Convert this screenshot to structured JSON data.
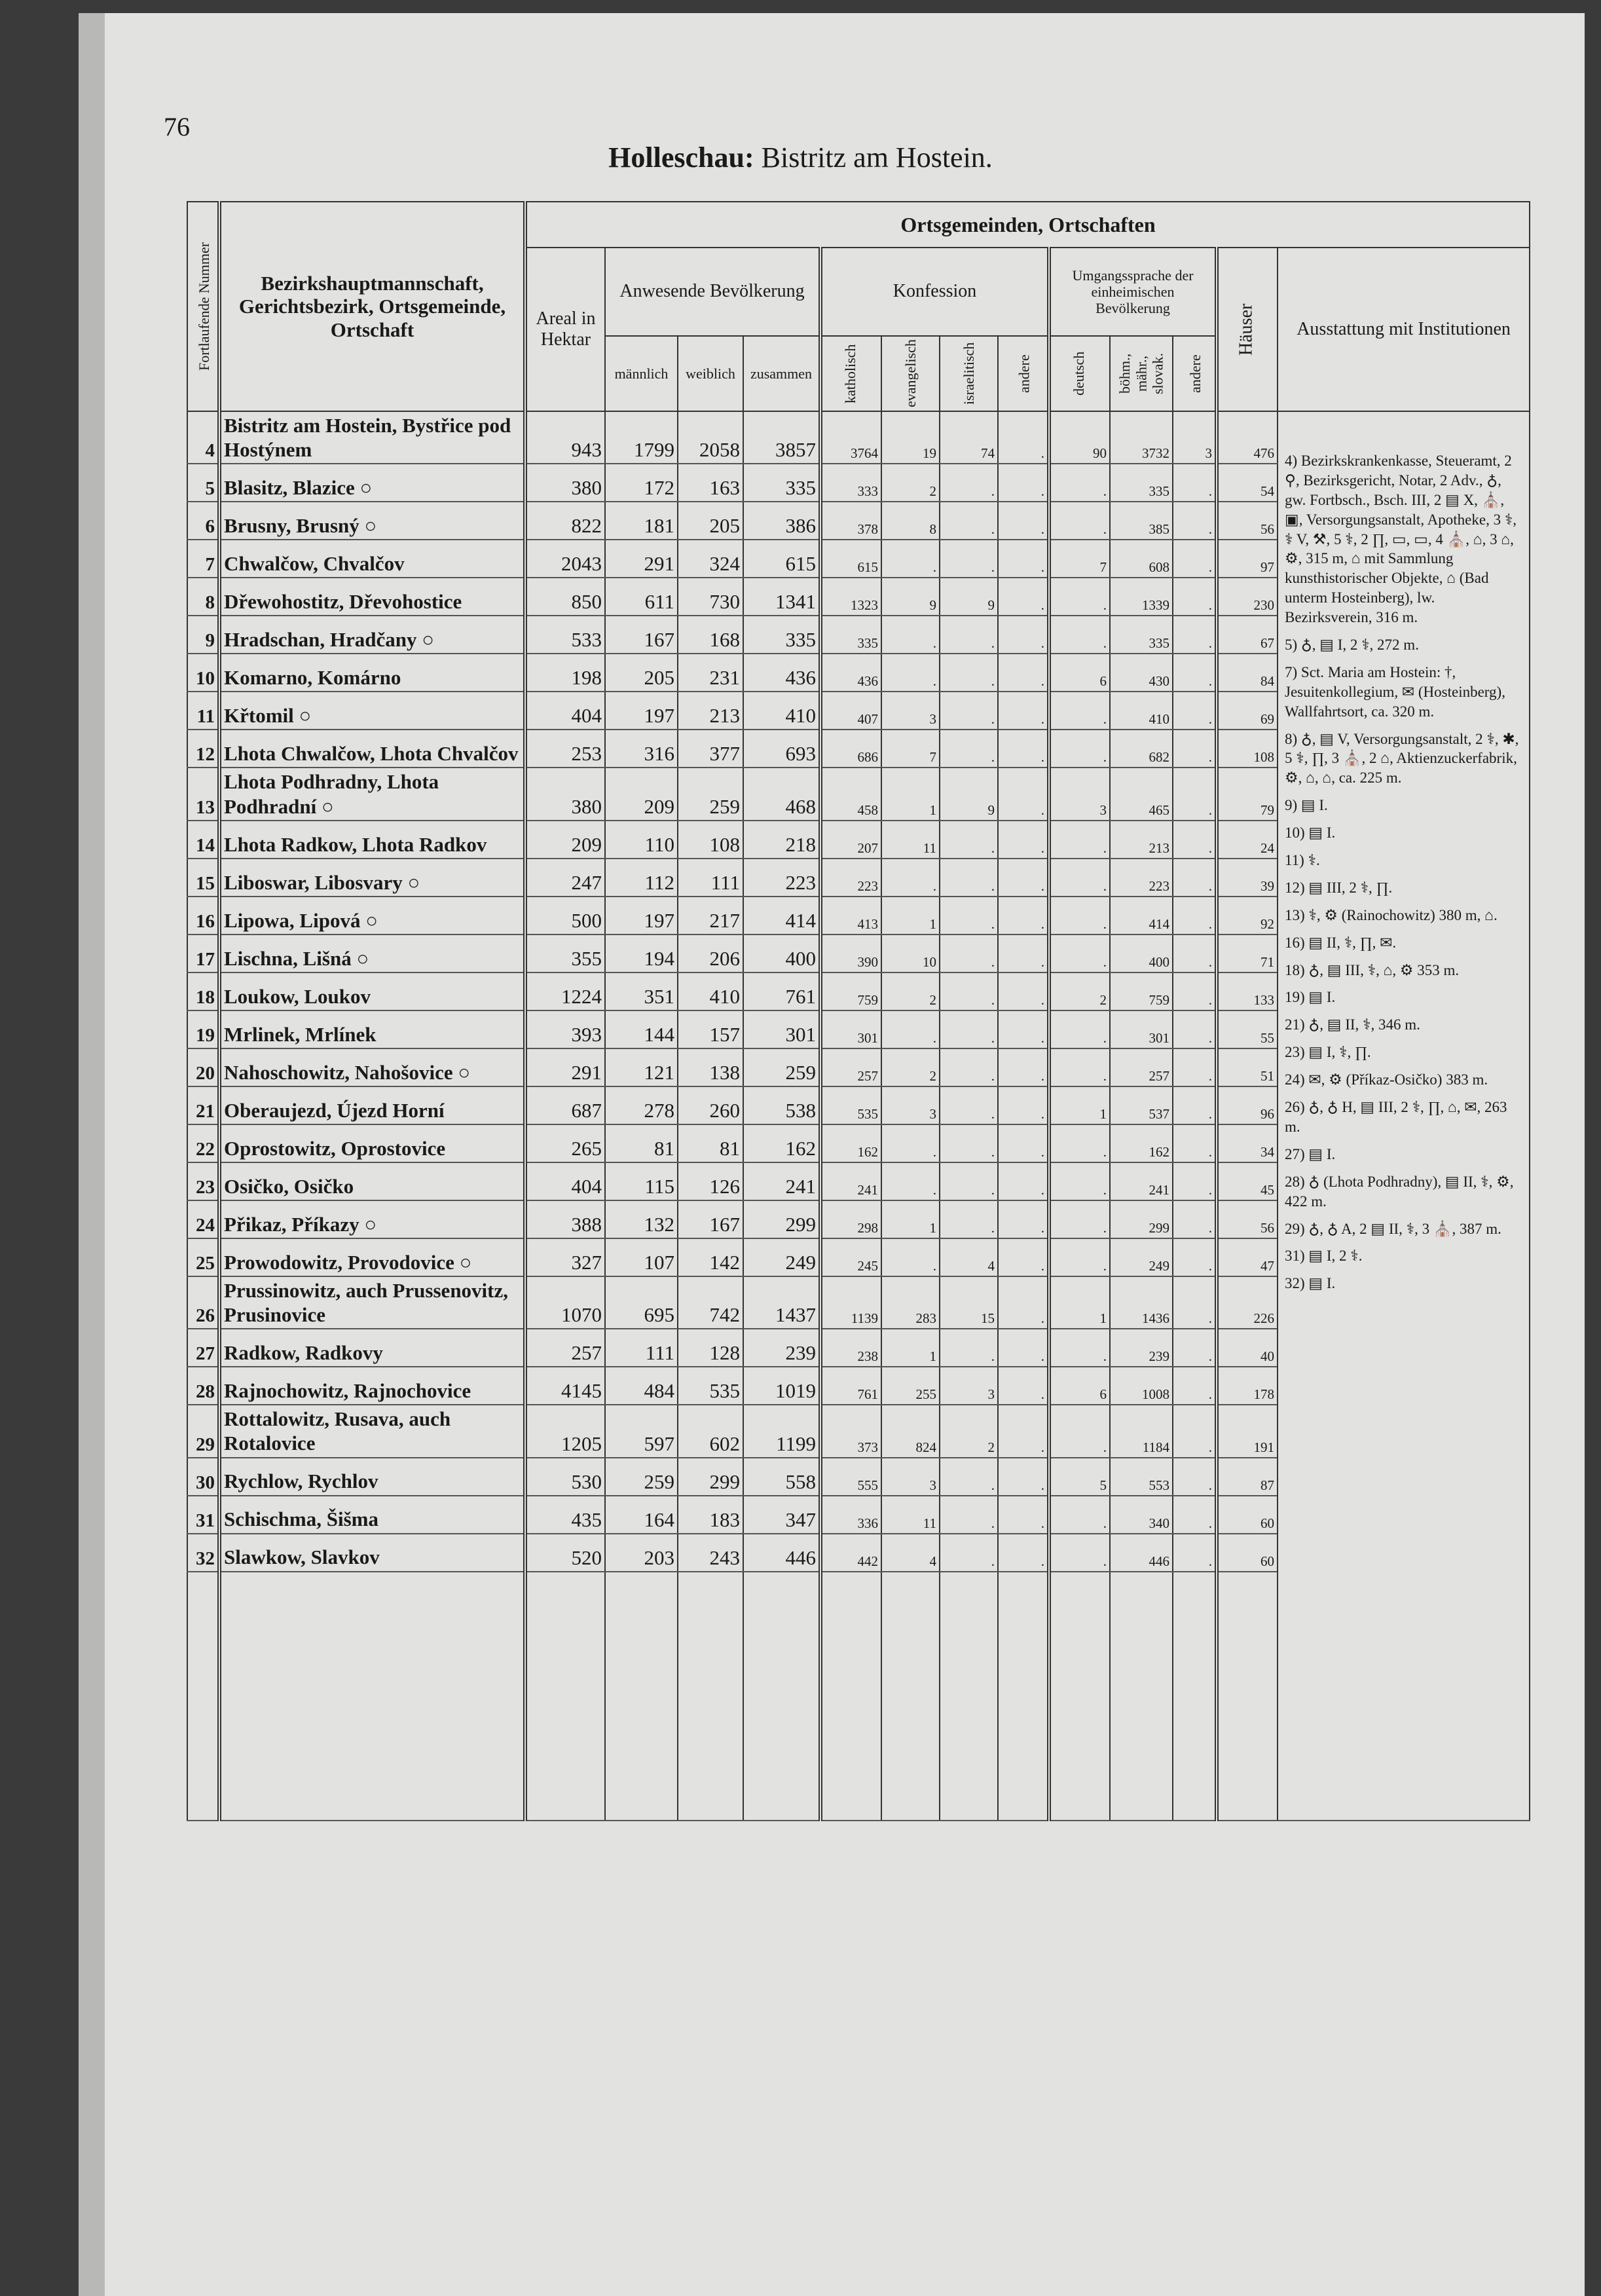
{
  "page_number": "76",
  "title_bold": "Holleschau:",
  "title_rest": "Bistritz am Hostein.",
  "header": {
    "col_no": "Fortlaufende Nummer",
    "col_name": "Bezirkshauptmannschaft, Gerichtsbezirk, Ortsgemeinde, Ortschaft",
    "group": "Ortsgemeinden, Ortschaften",
    "areal": "Areal in Hektar",
    "population": "Anwesende Bevölkerung",
    "male": "männlich",
    "female": "weiblich",
    "total": "zusammen",
    "confession": "Konfession",
    "catholic": "katholisch",
    "protestant": "evangelisch",
    "jewish": "israelitisch",
    "other_conf": "andere",
    "language": "Umgangssprache der einheimischen Bevölkerung",
    "german": "deutsch",
    "czech": "böhm., mähr., slovak.",
    "other_lang": "andere",
    "houses": "Häuser",
    "institutions": "Ausstattung mit Institutionen"
  },
  "table": {
    "rows": [
      [
        "4",
        "Bistritz am Hostein, Bystřice pod Hostýnem",
        943,
        1799,
        2058,
        3857,
        3764,
        19,
        74,
        ".",
        90,
        3732,
        3,
        476
      ],
      [
        "5",
        "Blasitz, Blazice ○",
        380,
        172,
        163,
        335,
        333,
        2,
        ".",
        ".",
        ".",
        335,
        ".",
        54
      ],
      [
        "6",
        "Brusny, Brusný ○",
        822,
        181,
        205,
        386,
        378,
        8,
        ".",
        ".",
        ".",
        385,
        ".",
        56
      ],
      [
        "7",
        "Chwalčow, Chvalčov",
        2043,
        291,
        324,
        615,
        615,
        ".",
        ".",
        ".",
        7,
        608,
        ".",
        97
      ],
      [
        "8",
        "Dřewohostitz, Dřevohostice",
        850,
        611,
        730,
        1341,
        1323,
        9,
        9,
        ".",
        ".",
        1339,
        ".",
        230
      ],
      [
        "9",
        "Hradschan, Hradčany ○",
        533,
        167,
        168,
        335,
        335,
        ".",
        ".",
        ".",
        ".",
        335,
        ".",
        67
      ],
      [
        "10",
        "Komarno, Komárno",
        198,
        205,
        231,
        436,
        436,
        ".",
        ".",
        ".",
        6,
        430,
        ".",
        84
      ],
      [
        "11",
        "Křtomil ○",
        404,
        197,
        213,
        410,
        407,
        3,
        ".",
        ".",
        ".",
        410,
        ".",
        69
      ],
      [
        "12",
        "Lhota Chwalčow, Lhota Chvalčov",
        253,
        316,
        377,
        693,
        686,
        7,
        ".",
        ".",
        ".",
        682,
        ".",
        108
      ],
      [
        "13",
        "Lhota Podhradny, Lhota Podhradní ○",
        380,
        209,
        259,
        468,
        458,
        1,
        9,
        ".",
        3,
        465,
        ".",
        79
      ],
      [
        "14",
        "Lhota Radkow, Lhota Radkov",
        209,
        110,
        108,
        218,
        207,
        11,
        ".",
        ".",
        ".",
        213,
        ".",
        24
      ],
      [
        "15",
        "Liboswar, Libosvary ○",
        247,
        112,
        111,
        223,
        223,
        ".",
        ".",
        ".",
        ".",
        223,
        ".",
        39
      ],
      [
        "16",
        "Lipowa, Lipová ○",
        500,
        197,
        217,
        414,
        413,
        1,
        ".",
        ".",
        ".",
        414,
        ".",
        92
      ],
      [
        "17",
        "Lischna, Lišná ○",
        355,
        194,
        206,
        400,
        390,
        10,
        ".",
        ".",
        ".",
        400,
        ".",
        71
      ],
      [
        "18",
        "Loukow, Loukov",
        1224,
        351,
        410,
        761,
        759,
        2,
        ".",
        ".",
        2,
        759,
        ".",
        133
      ],
      [
        "19",
        "Mrlinek, Mrlínek",
        393,
        144,
        157,
        301,
        301,
        ".",
        ".",
        ".",
        ".",
        301,
        ".",
        55
      ],
      [
        "20",
        "Nahoschowitz, Nahošovice ○",
        291,
        121,
        138,
        259,
        257,
        2,
        ".",
        ".",
        ".",
        257,
        ".",
        51
      ],
      [
        "21",
        "Oberaujezd, Újezd Horní",
        687,
        278,
        260,
        538,
        535,
        3,
        ".",
        ".",
        1,
        537,
        ".",
        96
      ],
      [
        "22",
        "Oprostowitz, Oprostovice",
        265,
        81,
        81,
        162,
        162,
        ".",
        ".",
        ".",
        ".",
        162,
        ".",
        34
      ],
      [
        "23",
        "Osičko, Osičko",
        404,
        115,
        126,
        241,
        241,
        ".",
        ".",
        ".",
        ".",
        241,
        ".",
        45
      ],
      [
        "24",
        "Přikaz, Příkazy ○",
        388,
        132,
        167,
        299,
        298,
        1,
        ".",
        ".",
        ".",
        299,
        ".",
        56
      ],
      [
        "25",
        "Prowodowitz, Provodovice ○",
        327,
        107,
        142,
        249,
        245,
        ".",
        4,
        ".",
        ".",
        249,
        ".",
        47
      ],
      [
        "26",
        "Prussinowitz, auch Prussenovitz, Prusinovice",
        1070,
        695,
        742,
        1437,
        1139,
        283,
        15,
        ".",
        1,
        1436,
        ".",
        226
      ],
      [
        "27",
        "Radkow, Radkovy",
        257,
        111,
        128,
        239,
        238,
        1,
        ".",
        ".",
        ".",
        239,
        ".",
        40
      ],
      [
        "28",
        "Rajnochowitz, Rajnochovice",
        4145,
        484,
        535,
        1019,
        761,
        255,
        3,
        ".",
        6,
        1008,
        ".",
        178
      ],
      [
        "29",
        "Rottalowitz, Rusava, auch Rotalovice",
        1205,
        597,
        602,
        1199,
        373,
        824,
        2,
        ".",
        ".",
        1184,
        ".",
        191
      ],
      [
        "30",
        "Rychlow, Rychlov",
        530,
        259,
        299,
        558,
        555,
        3,
        ".",
        ".",
        5,
        553,
        ".",
        87
      ],
      [
        "31",
        "Schischma, Šišma",
        435,
        164,
        183,
        347,
        336,
        11,
        ".",
        ".",
        ".",
        340,
        ".",
        60
      ],
      [
        "32",
        "Slawkow, Slavkov",
        520,
        203,
        243,
        446,
        442,
        4,
        ".",
        ".",
        ".",
        446,
        ".",
        60
      ]
    ]
  },
  "notes": [
    "4) Bezirkskrankenkasse, Steueramt, 2 ⚲, Bezirksgericht, Notar, 2 Adv., ♁, gw. Fortbsch., Bsch. III, 2 ▤ X, ⛪, ▣, Versorgungsanstalt, Apotheke, 3 ⚕, ⚕ V, ⚒, 5 ⚕, 2 ∏, ▭, ▭, 4 ⛪, ⌂, 3 ⌂, ⚙, 315 m, ⌂ mit Sammlung kunsthistorischer Objekte, ⌂ (Bad unterm Hosteinberg), lw. Bezirksverein, 316 m.",
    "5) ♁, ▤ I, 2 ⚕, 272 m.",
    "7) Sct. Maria am Hostein: †, Jesuitenkollegium, ✉ (Hosteinberg), Wallfahrtsort, ca. 320 m.",
    "8) ♁, ▤ V, Versorgungsanstalt, 2 ⚕, ✱, 5 ⚕, ∏, 3 ⛪, 2 ⌂, Aktienzuckerfabrik, ⚙, ⌂, ⌂, ca. 225 m.",
    "9) ▤ I.",
    "10) ▤ I.",
    "11) ⚕.",
    "12) ▤ III, 2 ⚕, ∏.",
    "13) ⚕, ⚙ (Rainochowitz) 380 m, ⌂.",
    "16) ▤ II, ⚕, ∏, ✉.",
    "18) ♁, ▤ III, ⚕, ⌂, ⚙ 353 m.",
    "19) ▤ I.",
    "21) ♁, ▤ II, ⚕, 346 m.",
    "23) ▤ I, ⚕, ∏.",
    "24) ✉, ⚙ (Příkaz-Osičko) 383 m.",
    "26) ♁, ♁ H, ▤ III, 2 ⚕, ∏, ⌂, ✉, 263 m.",
    "27) ▤ I.",
    "28) ♁ (Lhota Podhradny), ▤ II, ⚕, ⚙, 422 m.",
    "29) ♁, ♁ A, 2 ▤ II, ⚕, 3 ⛪, 387 m.",
    "31) ▤ I, 2 ⚕.",
    "32) ▤ I."
  ]
}
